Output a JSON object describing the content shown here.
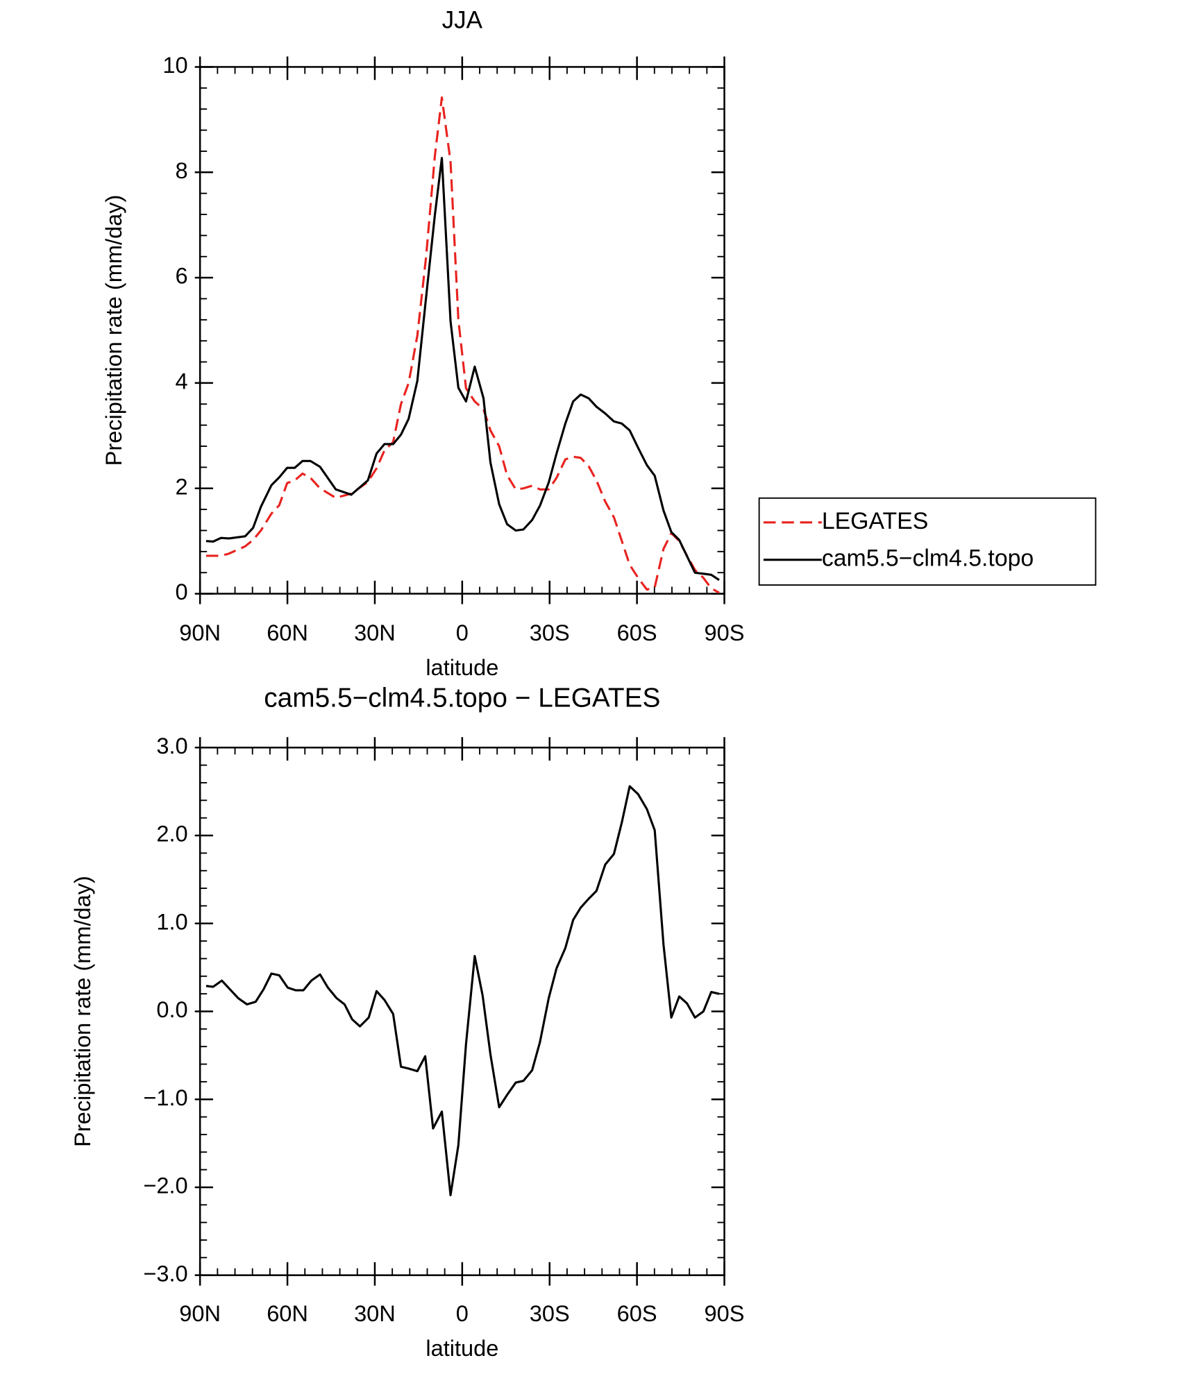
{
  "chart_data": [
    {
      "type": "line",
      "title": "JJA",
      "x_label": "latitude",
      "y_label": "Precipitation rate (mm/day)",
      "xlim": [
        90,
        -90
      ],
      "xticks": [
        {
          "value": 90,
          "label": "90N"
        },
        {
          "value": 60,
          "label": "60N"
        },
        {
          "value": 30,
          "label": "30N"
        },
        0,
        {
          "value": -30,
          "label": "30S"
        },
        {
          "value": -60,
          "label": "60S"
        },
        {
          "value": -90,
          "label": "90S"
        }
      ],
      "ylim": [
        0,
        10
      ],
      "yticks": [
        0,
        2,
        4,
        6,
        8,
        10
      ],
      "legend": "right",
      "x": [
        87.9,
        85.5,
        82.8,
        80.1,
        74.5,
        71.8,
        69.1,
        65.5,
        62.8,
        60.1,
        57.5,
        54.8,
        52.1,
        48.8,
        43.4,
        38.1,
        32.4,
        29.4,
        26.7,
        23.7,
        21.0,
        18.4,
        15.4,
        12.4,
        9.4,
        7.0,
        4.0,
        1.3,
        -1.3,
        -4.3,
        -7.3,
        -9.7,
        -12.7,
        -15.4,
        -18.4,
        -21.0,
        -24.0,
        -26.7,
        -29.7,
        -32.4,
        -35.4,
        -38.1,
        -40.7,
        -43.4,
        -46.1,
        -49.1,
        -52.1,
        -54.8,
        -57.5,
        -60.4,
        -63.4,
        -66.1,
        -69.1,
        -71.8,
        -74.5,
        -77.2,
        -79.9,
        -82.8,
        -85.5,
        -88.2
      ],
      "series": [
        {
          "name": "LEGATES",
          "color": "#e8231f",
          "dash": true,
          "values": [
            0.72,
            0.72,
            0.72,
            0.76,
            0.9,
            1.02,
            1.2,
            1.52,
            1.68,
            2.1,
            2.15,
            2.28,
            2.2,
            2.0,
            1.82,
            1.9,
            2.12,
            2.38,
            2.72,
            2.88,
            3.6,
            4.0,
            4.9,
            6.4,
            8.3,
            9.42,
            8.2,
            5.2,
            3.9,
            3.65,
            3.5,
            3.1,
            2.8,
            2.25,
            1.98,
            2.0,
            2.05,
            1.98,
            1.98,
            2.2,
            2.55,
            2.6,
            2.58,
            2.42,
            2.15,
            1.75,
            1.45,
            1.0,
            0.55,
            0.3,
            0.08,
            0.12,
            0.85,
            1.15,
            1.0,
            0.72,
            0.45,
            0.3,
            0.1,
            0.02
          ]
        },
        {
          "name": "cam5.5−clm4.5.topo",
          "color": "#000000",
          "dash": false,
          "values": [
            1.0,
            0.99,
            1.06,
            1.05,
            1.09,
            1.25,
            1.65,
            2.06,
            2.21,
            2.39,
            2.39,
            2.52,
            2.52,
            2.41,
            1.98,
            1.88,
            2.15,
            2.66,
            2.84,
            2.84,
            3.02,
            3.32,
            4.04,
            5.63,
            7.18,
            8.27,
            5.17,
            3.91,
            3.65,
            4.31,
            3.71,
            2.49,
            1.7,
            1.32,
            1.2,
            1.22,
            1.4,
            1.67,
            2.11,
            2.66,
            3.23,
            3.65,
            3.78,
            3.71,
            3.55,
            3.42,
            3.27,
            3.23,
            3.1,
            2.77,
            2.44,
            2.24,
            1.58,
            1.17,
            1.02,
            0.71,
            0.4,
            0.38,
            0.36,
            0.26
          ]
        }
      ]
    },
    {
      "type": "line",
      "title": "cam5.5−clm4.5.topo − LEGATES",
      "x_label": "latitude",
      "y_label": "Precipitation rate (mm/day)",
      "xlim": [
        90,
        -90
      ],
      "xticks": [
        {
          "value": 90,
          "label": "90N"
        },
        {
          "value": 60,
          "label": "60N"
        },
        {
          "value": 30,
          "label": "30N"
        },
        0,
        {
          "value": -30,
          "label": "30S"
        },
        {
          "value": -60,
          "label": "60S"
        },
        {
          "value": -90,
          "label": "90S"
        }
      ],
      "ylim": [
        -3,
        3
      ],
      "yticks": [
        {
          "value": -3,
          "label": "−3.0"
        },
        {
          "value": -2,
          "label": "−2.0"
        },
        {
          "value": -1,
          "label": "−1.0"
        },
        {
          "value": 0,
          "label": "0.0"
        },
        {
          "value": 1,
          "label": "1.0"
        },
        {
          "value": 2,
          "label": "2.0"
        },
        {
          "value": 3,
          "label": "3.0"
        }
      ],
      "color": "#000000",
      "x": [
        87.9,
        85.5,
        82.5,
        76.9,
        73.9,
        70.9,
        68.2,
        65.5,
        62.8,
        59.9,
        57.2,
        54.5,
        51.8,
        48.8,
        46.1,
        43.1,
        40.4,
        37.8,
        35.1,
        32.1,
        29.4,
        26.7,
        23.7,
        21.0,
        18.4,
        15.4,
        12.7,
        10.0,
        7.0,
        4.0,
        1.3,
        -1.3,
        -4.3,
        -7.0,
        -9.7,
        -12.7,
        -15.4,
        -18.4,
        -21.0,
        -24.0,
        -26.7,
        -29.7,
        -32.4,
        -35.4,
        -38.1,
        -40.7,
        -43.4,
        -46.1,
        -49.1,
        -52.1,
        -54.8,
        -57.5,
        -60.4,
        -63.4,
        -66.1,
        -69.1,
        -71.8,
        -74.5,
        -77.2,
        -79.9,
        -82.8,
        -85.5,
        -88.2
      ],
      "values": [
        0.29,
        0.28,
        0.35,
        0.15,
        0.08,
        0.11,
        0.25,
        0.43,
        0.41,
        0.27,
        0.24,
        0.24,
        0.35,
        0.42,
        0.27,
        0.15,
        0.08,
        -0.09,
        -0.17,
        -0.07,
        0.23,
        0.13,
        -0.03,
        -0.63,
        -0.65,
        -0.68,
        -0.51,
        -1.33,
        -1.14,
        -2.09,
        -1.52,
        -0.37,
        0.63,
        0.18,
        -0.49,
        -1.09,
        -0.95,
        -0.81,
        -0.79,
        -0.67,
        -0.35,
        0.15,
        0.49,
        0.72,
        1.04,
        1.18,
        1.28,
        1.37,
        1.67,
        1.79,
        2.15,
        2.56,
        2.47,
        2.3,
        2.06,
        0.76,
        -0.07,
        0.17,
        0.09,
        -0.07,
        0.0,
        0.22,
        0.2
      ]
    }
  ]
}
